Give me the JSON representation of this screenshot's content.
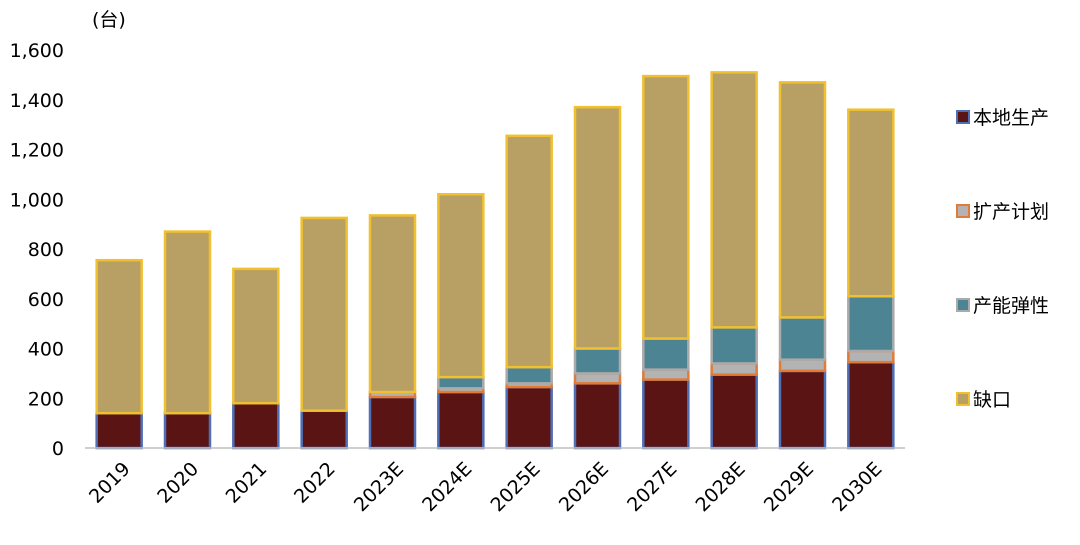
{
  "chart_data": {
    "type": "bar",
    "stacked": true,
    "unit_label": "(台)",
    "categories": [
      "2019",
      "2020",
      "2021",
      "2022",
      "2023E",
      "2024E",
      "2025E",
      "2026E",
      "2027E",
      "2028E",
      "2029E",
      "2030E"
    ],
    "series": [
      {
        "name": "本地生产",
        "fill": "#5a1414",
        "border": "#4f6fb5",
        "values": [
          140,
          140,
          180,
          150,
          205,
          225,
          245,
          260,
          275,
          295,
          310,
          345
        ]
      },
      {
        "name": "扩产计划",
        "fill": "#b3b3b3",
        "border": "#e07b39",
        "values": [
          0,
          0,
          0,
          0,
          20,
          15,
          15,
          40,
          40,
          45,
          45,
          45
        ]
      },
      {
        "name": "产能弹性",
        "fill": "#4d8494",
        "border": "#aaaaaa",
        "values": [
          0,
          0,
          0,
          0,
          0,
          45,
          65,
          100,
          125,
          145,
          170,
          220
        ]
      },
      {
        "name": "缺口",
        "fill": "#b8a064",
        "border": "#f0c030",
        "values": [
          615,
          730,
          540,
          775,
          710,
          735,
          930,
          970,
          1055,
          1025,
          945,
          750
        ]
      }
    ],
    "ylim": [
      0,
      1600
    ],
    "yticks": [
      0,
      200,
      400,
      600,
      800,
      1000,
      1200,
      1400,
      1600
    ],
    "ytick_labels": [
      "0",
      "200",
      "400",
      "600",
      "800",
      "1,000",
      "1,200",
      "1,400",
      "1,600"
    ],
    "legend_position": "right",
    "grid": false
  }
}
